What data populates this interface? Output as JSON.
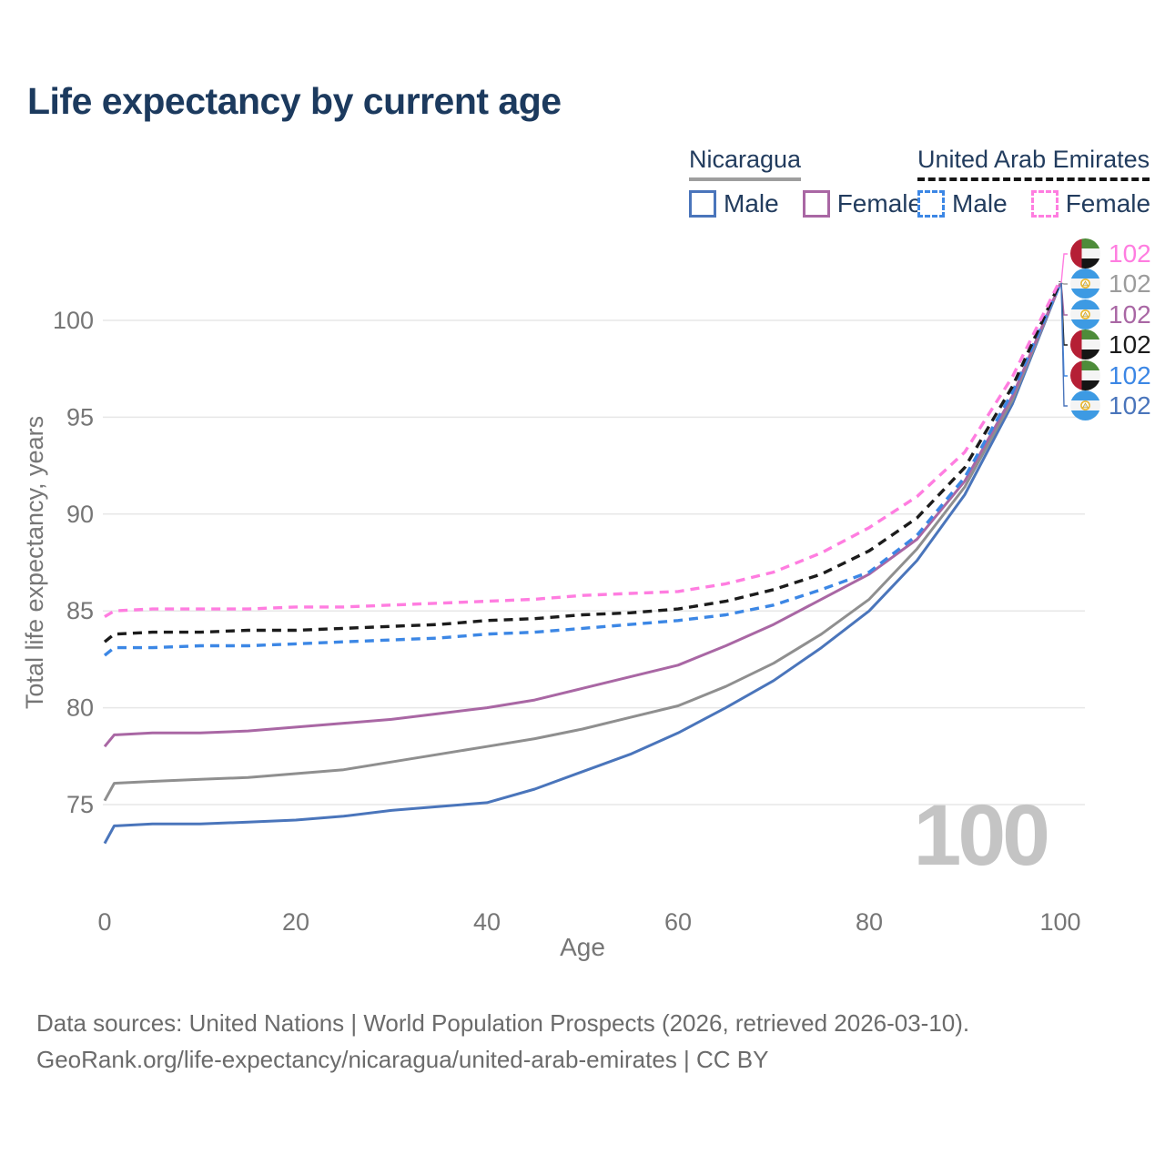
{
  "title": "Life expectancy by current age",
  "legend": {
    "groups": [
      {
        "country": "Nicaragua",
        "line_style": "solid",
        "underline_color": "#9e9e9e",
        "items": [
          {
            "label": "Male",
            "color": "#4a75bb",
            "dashed": false
          },
          {
            "label": "Female",
            "color": "#a967a4",
            "dashed": false
          }
        ]
      },
      {
        "country": "United Arab Emirates",
        "line_style": "dashed",
        "underline_color": "#161616",
        "items": [
          {
            "label": "Male",
            "color": "#3c87e5",
            "dashed": true
          },
          {
            "label": "Female",
            "color": "#ff7de0",
            "dashed": true
          }
        ]
      }
    ]
  },
  "chart_data": {
    "type": "line",
    "title": "Life expectancy by current age",
    "xlabel": "Age",
    "ylabel": "Total life expectancy, years",
    "xlim": [
      0,
      100
    ],
    "ylim": [
      72,
      103
    ],
    "xticks": [
      0,
      20,
      40,
      60,
      80,
      100
    ],
    "yticks": [
      75,
      80,
      85,
      90,
      95,
      100
    ],
    "grid": true,
    "legend_position": "top-right",
    "ages": [
      0,
      1,
      5,
      10,
      15,
      20,
      25,
      30,
      35,
      40,
      45,
      50,
      55,
      60,
      65,
      70,
      75,
      80,
      85,
      90,
      95,
      100
    ],
    "series": [
      {
        "name": "Nicaragua Male",
        "country": "Nicaragua",
        "sex": "male",
        "color": "#4a75bb",
        "dashed": false,
        "end_value": 102,
        "values": [
          73.0,
          73.9,
          74.0,
          74.0,
          74.1,
          74.2,
          74.4,
          74.7,
          74.9,
          75.1,
          75.8,
          76.7,
          77.6,
          78.7,
          80.0,
          81.4,
          83.1,
          85.0,
          87.6,
          91.0,
          95.7,
          101.9
        ]
      },
      {
        "name": "Nicaragua Both sexes",
        "country": "Nicaragua",
        "sex": "both",
        "color": "#8f8f8f",
        "dashed": false,
        "end_value": 102,
        "values": [
          75.2,
          76.1,
          76.2,
          76.3,
          76.4,
          76.6,
          76.8,
          77.2,
          77.6,
          78.0,
          78.4,
          78.9,
          79.5,
          80.1,
          81.1,
          82.3,
          83.8,
          85.6,
          88.2,
          91.4,
          95.9,
          101.9
        ]
      },
      {
        "name": "Nicaragua Female",
        "country": "Nicaragua",
        "sex": "female",
        "color": "#a967a4",
        "dashed": false,
        "end_value": 102,
        "values": [
          78.0,
          78.6,
          78.7,
          78.7,
          78.8,
          79.0,
          79.2,
          79.4,
          79.7,
          80.0,
          80.4,
          81.0,
          81.6,
          82.2,
          83.2,
          84.3,
          85.6,
          86.9,
          88.7,
          91.7,
          96.1,
          101.9
        ]
      },
      {
        "name": "United Arab Emirates Male",
        "country": "United Arab Emirates",
        "sex": "male",
        "color": "#3c87e5",
        "dashed": true,
        "end_value": 102,
        "values": [
          82.7,
          83.1,
          83.1,
          83.2,
          83.2,
          83.3,
          83.4,
          83.5,
          83.6,
          83.8,
          83.9,
          84.1,
          84.3,
          84.5,
          84.8,
          85.3,
          86.1,
          87.0,
          88.9,
          91.9,
          96.3,
          101.9
        ]
      },
      {
        "name": "United Arab Emirates Both sexes",
        "country": "United Arab Emirates",
        "sex": "both",
        "color": "#1c1c1c",
        "dashed": true,
        "end_value": 102,
        "values": [
          83.4,
          83.8,
          83.9,
          83.9,
          84.0,
          84.0,
          84.1,
          84.2,
          84.3,
          84.5,
          84.6,
          84.8,
          84.9,
          85.1,
          85.5,
          86.1,
          86.9,
          88.1,
          89.8,
          92.4,
          96.6,
          102.0
        ]
      },
      {
        "name": "United Arab Emirates Female",
        "country": "United Arab Emirates",
        "sex": "female",
        "color": "#ff7de0",
        "dashed": true,
        "end_value": 102,
        "values": [
          84.7,
          85.0,
          85.1,
          85.1,
          85.1,
          85.2,
          85.2,
          85.3,
          85.4,
          85.5,
          85.6,
          85.8,
          85.9,
          86.0,
          86.4,
          87.0,
          88.0,
          89.3,
          90.9,
          93.2,
          97.1,
          102.1
        ]
      }
    ]
  },
  "end_labels": {
    "rows": [
      {
        "flag": "are",
        "value": "102",
        "color": "#ff7de0"
      },
      {
        "flag": "nic",
        "value": "102",
        "color": "#9c9c9c"
      },
      {
        "flag": "nic",
        "value": "102",
        "color": "#a967a4"
      },
      {
        "flag": "are",
        "value": "102",
        "color": "#1c1c1c"
      },
      {
        "flag": "are",
        "value": "102",
        "color": "#3c87e5"
      },
      {
        "flag": "nic",
        "value": "102",
        "color": "#4a75bb"
      }
    ]
  },
  "age_watermark": "100",
  "footer": {
    "line1": "Data sources: United Nations | World Population Prospects (2026, retrieved 2026-03-10).",
    "line2": "GeoRank.org/life-expectancy/nicaragua/united-arab-emirates | CC BY"
  },
  "colors": {
    "title": "#1c3a5e",
    "axis_text": "#767676",
    "gridline": "#e7e7e7",
    "watermark": "#c4c4c4",
    "flag_nic_blue": "#3d9ae3",
    "flag_are_red": "#b51f35",
    "flag_are_green": "#4e8c3a",
    "flag_black": "#151515",
    "flag_white": "#f4f4f4"
  }
}
